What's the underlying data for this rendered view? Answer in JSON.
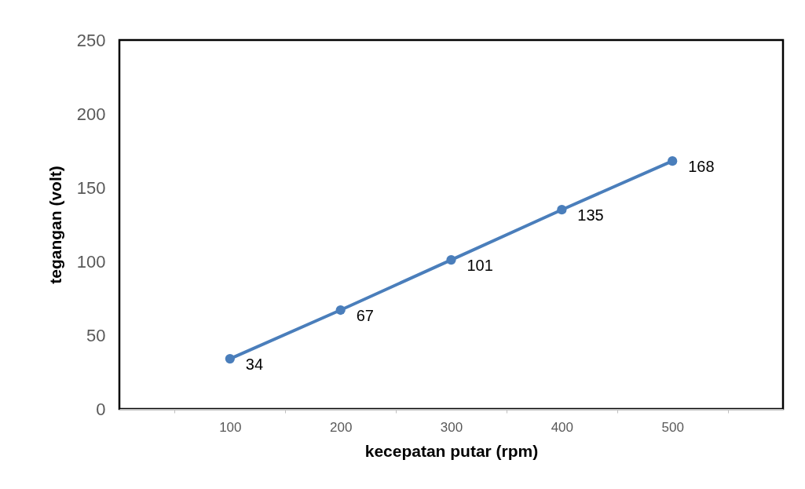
{
  "chart_data": {
    "type": "line",
    "xlabel": "kecepatan putar (rpm)",
    "ylabel": "tegangan (volt)",
    "categories": [
      "100",
      "200",
      "300",
      "400",
      "500"
    ],
    "series": [
      {
        "color": "#4a7ebb",
        "values": [
          34,
          67,
          101,
          135,
          168
        ]
      }
    ],
    "ylim": [
      0,
      250
    ],
    "yticks": [
      0,
      50,
      100,
      150,
      200,
      250
    ],
    "marker": "circle",
    "line_style": "solid",
    "data_labels": true,
    "grid": false,
    "legend": false
  }
}
